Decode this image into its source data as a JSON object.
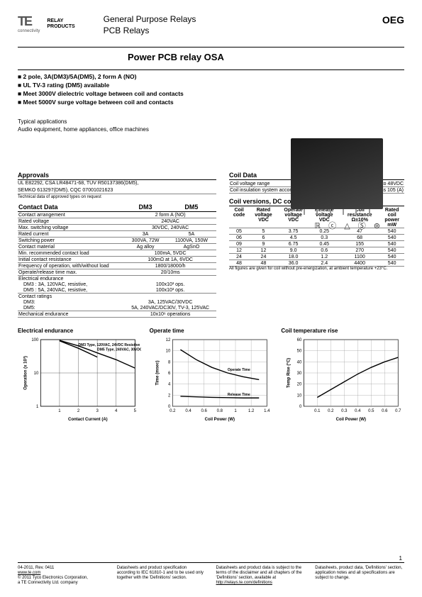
{
  "header": {
    "logo_brand": "TE",
    "logo_sub": "connectivity",
    "logo_right1": "RELAY",
    "logo_right2": "PRODUCTS",
    "title1": "General Purpose Relays",
    "title2": "PCB Relays",
    "oeg": "OEG"
  },
  "main_title": "Power PCB relay OSA",
  "bullets": [
    "2 pole, 3A(DM3)/5A(DM5), 2 form A (NO)",
    "UL TV-3 rating (DM5) available",
    "Meet 3000V dielectric voltage between coil and contacts",
    "Meet 5000V surge voltage between coil and contacts"
  ],
  "typical_label": "Typical applications",
  "typical_text": "Audio equipment, home appliances, office machines",
  "cert_glyphs": "ℝ ⓒ △ Ⓢ ⊚",
  "approvals": {
    "title": "Approvals",
    "line1": "UL E82292, CSA LR48471-68, TÜV R50137386(DM5),",
    "line2": "SEMKO 613297(DM5), CQC 07001021623",
    "note": "Technical data of approved types on request"
  },
  "contact_data": {
    "title": "Contact Data",
    "head_dm3": "DM3",
    "head_dm5": "DM5",
    "rows": [
      [
        "Contact arrangement",
        "2 form A (NO)"
      ],
      [
        "Rated voltage",
        "240VAC"
      ],
      [
        "Max. switching voltage",
        "30VDC, 240VAC"
      ],
      [
        "Rated current",
        "3A",
        "5A"
      ],
      [
        "Switching power",
        "300VA, 72W",
        "1100VA, 150W"
      ],
      [
        "Contact material",
        "Ag alloy",
        "AgSnO"
      ],
      [
        "Min. recommended contact load",
        "100mA, 5VDC"
      ],
      [
        "Initial contact resistance",
        "100mΩ at 1A, 6VDC"
      ],
      [
        "Frequency of operation, with/without load",
        "1800/18000/h"
      ],
      [
        "Operate/release time max.",
        "20/10ms"
      ]
    ],
    "endurance_label": "Electrical endurance",
    "endurance_rows": [
      [
        "DM3 : 3A, 120VAC, resistive,",
        "100x10³ ops."
      ],
      [
        "DM5 : 5A, 240VAC, resistive,",
        "100x10³ ops."
      ]
    ],
    "ratings_label": "Contact ratings",
    "ratings_rows": [
      [
        "DM3:",
        "3A, 125VAC/30VDC"
      ],
      [
        "DM5:",
        "5A, 240VAC/DC30V, TV-3, 125VAC"
      ]
    ],
    "mech_row": [
      "Mechanical endurance",
      "10x10⁶ operations"
    ]
  },
  "coil_data": {
    "title": "Coil Data",
    "rows": [
      [
        "Coil voltage range",
        "5 to 48VDC"
      ],
      [
        "Coil insulation system according UL",
        "class 105 (A)"
      ]
    ],
    "versions_title": "Coil versions, DC coil",
    "headers": [
      "Coil code",
      "Rated voltage VDC",
      "Operate voltage VDC",
      "Release voltage VDC",
      "Coil resistance Ω±10%",
      "Rated coil power mW"
    ],
    "vrows": [
      [
        "05",
        "5",
        "3.75",
        "0.25",
        "47",
        "540"
      ],
      [
        "06",
        "6",
        "4.5",
        "0.3",
        "68",
        "540"
      ],
      [
        "09",
        "9",
        "6.75",
        "0.45",
        "155",
        "540"
      ],
      [
        "12",
        "12",
        "9.0",
        "0.6",
        "270",
        "540"
      ],
      [
        "24",
        "24",
        "18.0",
        "1.2",
        "1100",
        "540"
      ],
      [
        "48",
        "48",
        "36.0",
        "2.4",
        "4400",
        "540"
      ]
    ],
    "note": "All figures are given for coil without pre-energization, at ambient temperature +23°C."
  },
  "charts": {
    "c1": {
      "title": "Electrical endurance",
      "xlabel": "Contact Current (A)",
      "ylabel": "Operation (x 10³)",
      "xlim": [
        0,
        5
      ],
      "ylim_log": [
        1,
        100
      ],
      "xticks": [
        1,
        2,
        3,
        4,
        5
      ],
      "yticks": [
        1,
        10,
        100
      ],
      "series": [
        {
          "label": "DM5 Type, 240VAC, 30VDC Resistive",
          "points": [
            [
              1,
              95
            ],
            [
              2,
              65
            ],
            [
              3,
              40
            ],
            [
              4,
              25
            ],
            [
              5,
              14
            ]
          ],
          "color": "#000",
          "width": 1.4
        },
        {
          "label": "DM3 Type, 120VAC, 24VDC Resistive",
          "points": [
            [
              1,
              92
            ],
            [
              2,
              55
            ],
            [
              3,
              30
            ]
          ],
          "color": "#000",
          "width": 1.4
        }
      ],
      "bg": "#fff",
      "grid": "#000"
    },
    "c2": {
      "title": "Operate time",
      "xlabel": "Coil Power (W)",
      "ylabel": "Time (msec)",
      "xlim": [
        0.2,
        1.4
      ],
      "ylim": [
        0,
        12
      ],
      "xticks": [
        0.2,
        0.4,
        0.6,
        0.8,
        1.0,
        1.2,
        1.4
      ],
      "yticks": [
        0,
        2,
        4,
        6,
        8,
        10,
        12
      ],
      "series": [
        {
          "label": "Operate Time",
          "points": [
            [
              0.3,
              10.2
            ],
            [
              0.5,
              8.4
            ],
            [
              0.7,
              7.0
            ],
            [
              0.9,
              6.0
            ],
            [
              1.1,
              5.3
            ],
            [
              1.3,
              4.8
            ]
          ],
          "color": "#000",
          "width": 1.4
        },
        {
          "label": "Release Time",
          "points": [
            [
              0.3,
              1.8
            ],
            [
              0.5,
              1.7
            ],
            [
              0.7,
              1.6
            ],
            [
              0.9,
              1.55
            ],
            [
              1.1,
              1.5
            ],
            [
              1.3,
              1.5
            ]
          ],
          "color": "#000",
          "width": 1.4
        }
      ],
      "bg": "#fff",
      "grid": "#888"
    },
    "c3": {
      "title": "Coil temperature rise",
      "xlabel": "Coil Power (W)",
      "ylabel": "Temp Rise (°C)",
      "xlim": [
        0,
        0.7
      ],
      "ylim": [
        0,
        60
      ],
      "xticks": [
        0.1,
        0.2,
        0.3,
        0.4,
        0.5,
        0.6,
        0.7
      ],
      "yticks": [
        0,
        10,
        20,
        30,
        40,
        50,
        60
      ],
      "series": [
        {
          "points": [
            [
              0.1,
              8
            ],
            [
              0.2,
              15
            ],
            [
              0.3,
              22
            ],
            [
              0.4,
              29
            ],
            [
              0.5,
              35
            ],
            [
              0.6,
              40
            ],
            [
              0.7,
              44
            ]
          ],
          "color": "#000",
          "width": 1.4
        }
      ],
      "bg": "#fff",
      "grid": "#888"
    }
  },
  "footer": {
    "col1_l1": "04-2011, Rev. 0411",
    "col1_l2": "www.te.com",
    "col1_l3": "© 2011 Tyco Electronics Corporation,",
    "col1_l4": "a TE Connectivity Ltd. company",
    "col2": "Datasheets and product specification according to IEC 61810-1 and to be used only together with the 'Definitions' section.",
    "col3": "Datasheets and product data is subject to the terms of the disclaimer and all chapters of the 'Definitions' section, available at",
    "col3_link": "http://relays.te.com/definitions",
    "col4": "Datasheets, product data, 'Definitions' section, application notes and all specifications are subject to change."
  },
  "page_no": "1"
}
